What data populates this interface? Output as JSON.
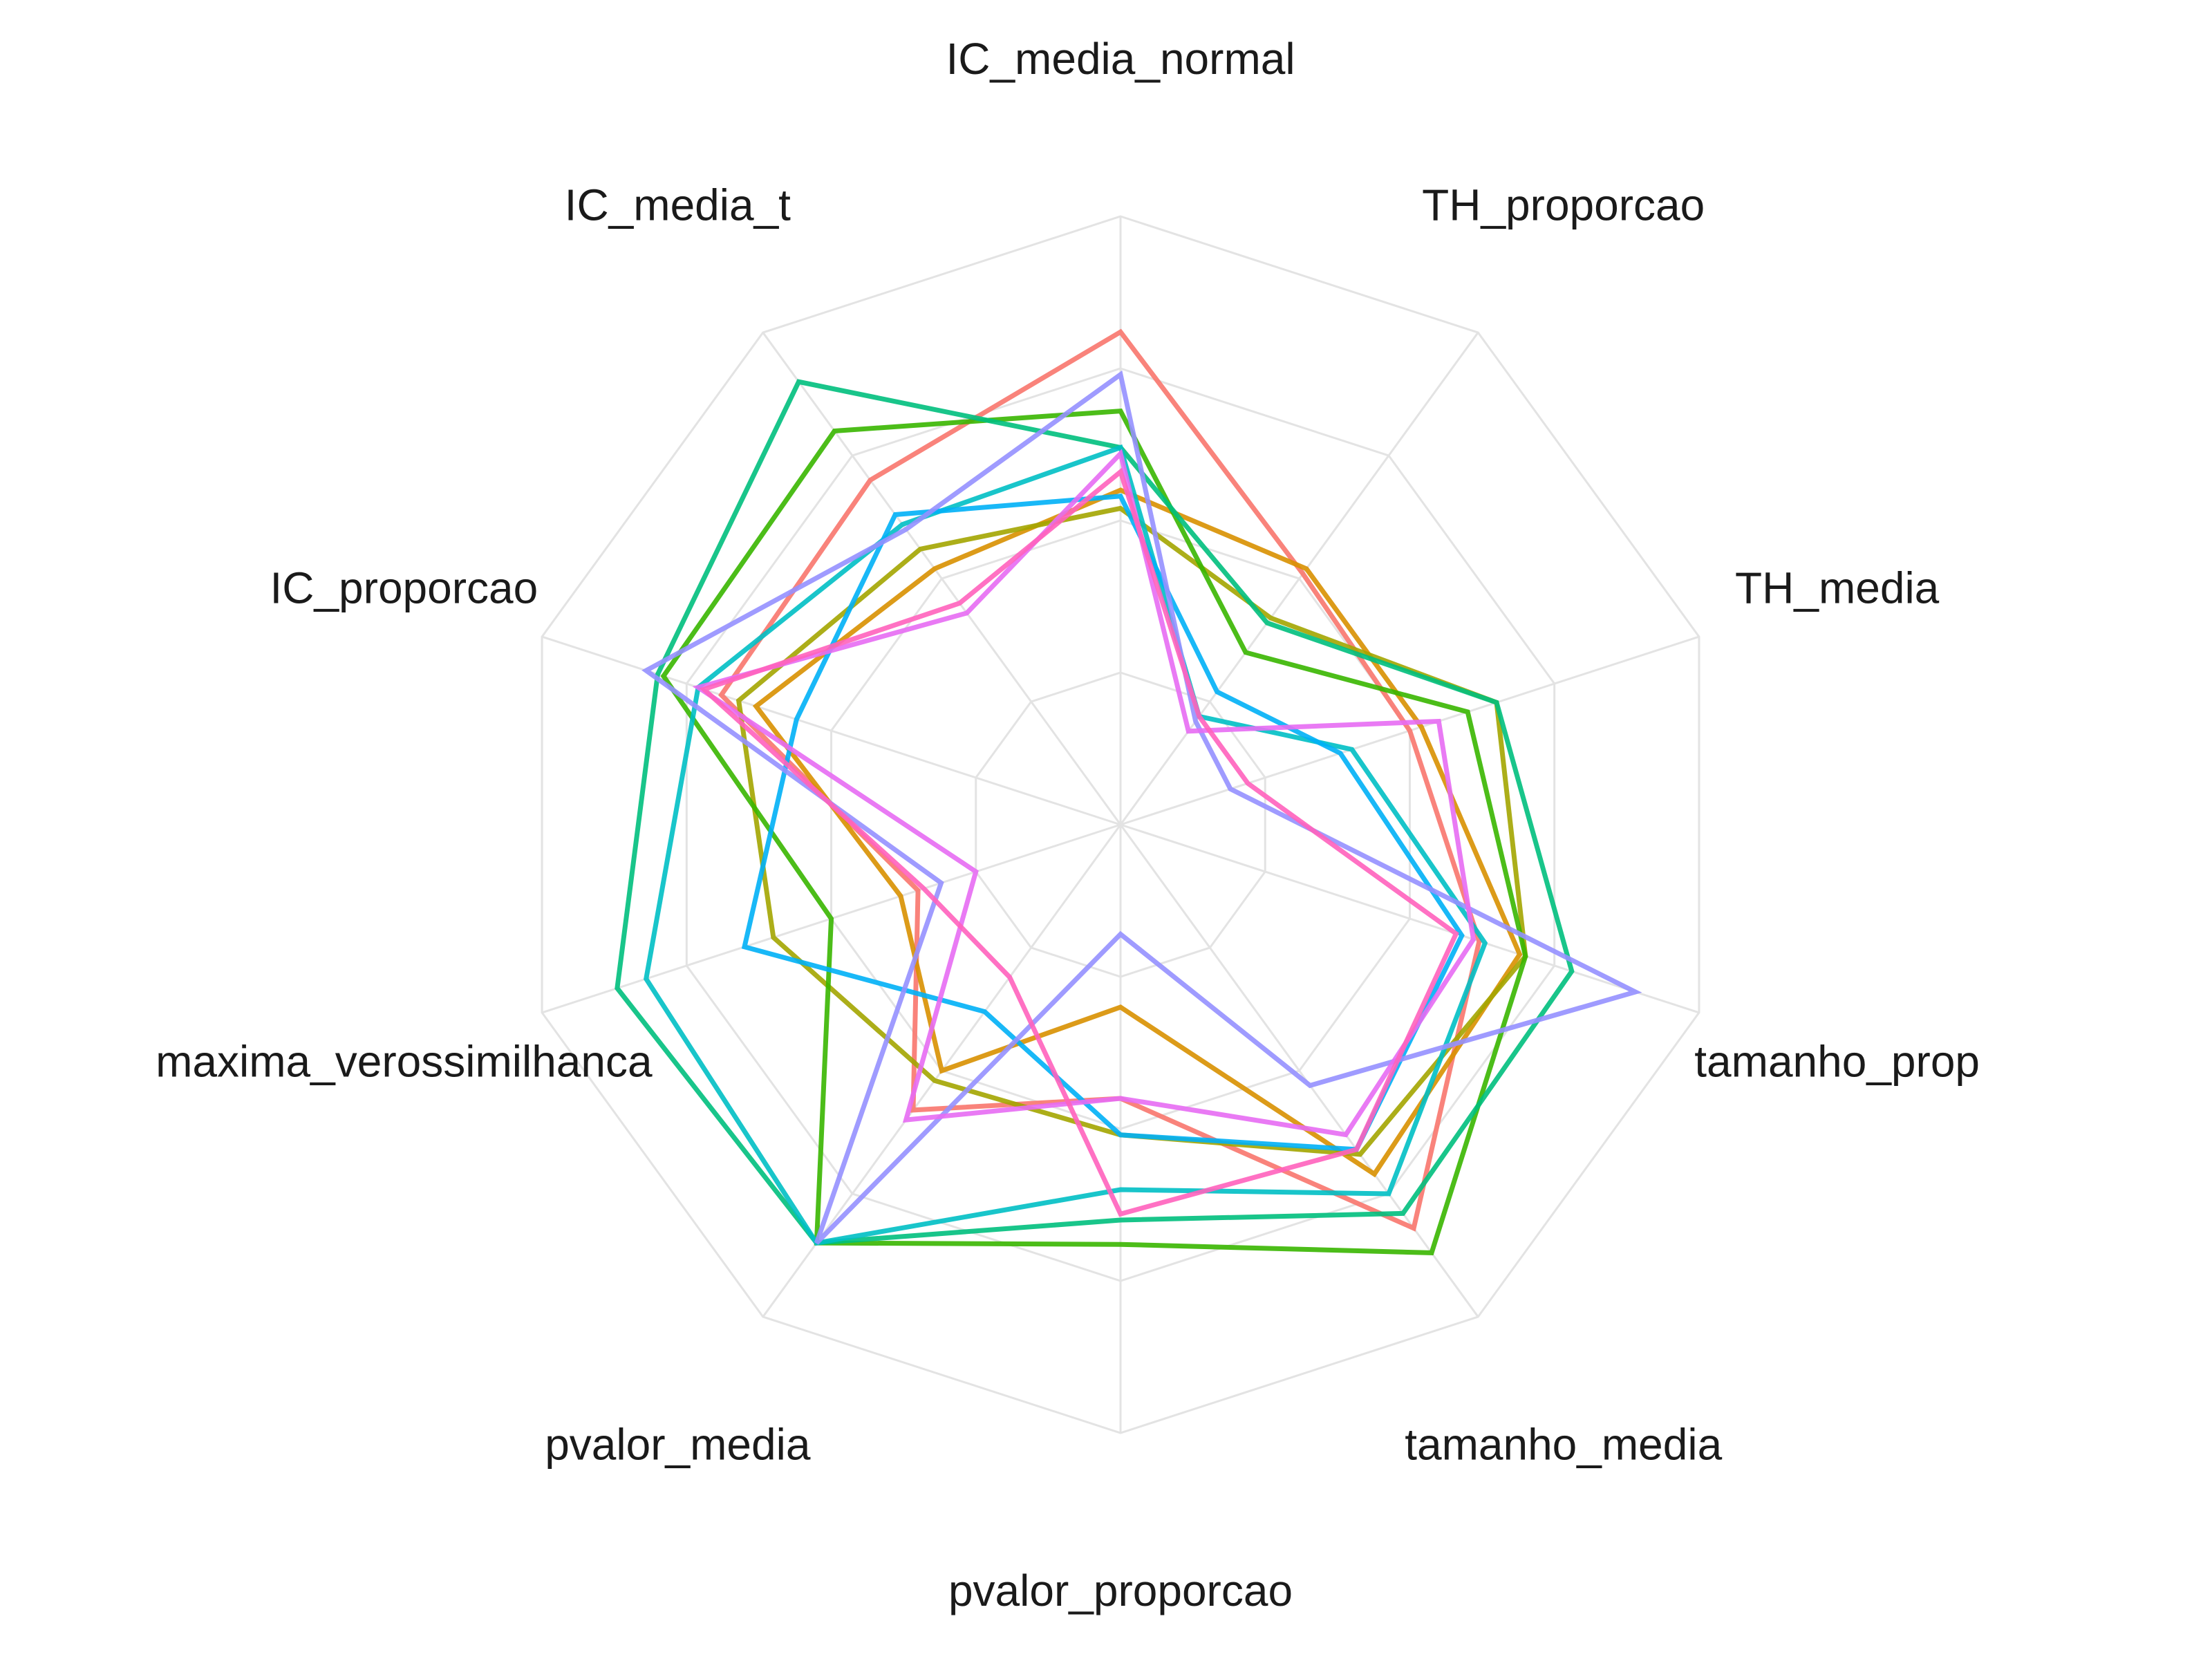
{
  "chart_data": {
    "type": "radar",
    "title": "",
    "grid": true,
    "legend": "none",
    "range": [
      0,
      1
    ],
    "axes": [
      "IC_media_normal",
      "TH_proporcao",
      "TH_media",
      "tamanho_prop",
      "tamanho_media",
      "pvalor_proporcao",
      "pvalor_media",
      "maxima_verossimilhanca",
      "IC_proporcao",
      "IC_media_t"
    ],
    "series": [
      {
        "color": "#F8766D",
        "values": [
          0.81,
          0.51,
          0.5,
          0.62,
          0.82,
          0.45,
          0.58,
          0.35,
          0.69,
          0.7
        ]
      },
      {
        "color": "#D89000",
        "values": [
          0.55,
          0.52,
          0.52,
          0.69,
          0.71,
          0.3,
          0.5,
          0.38,
          0.63,
          0.52
        ]
      },
      {
        "color": "#A3A500",
        "values": [
          0.52,
          0.42,
          0.65,
          0.7,
          0.67,
          0.51,
          0.52,
          0.6,
          0.66,
          0.56
        ]
      },
      {
        "color": "#39B600",
        "values": [
          0.68,
          0.35,
          0.6,
          0.7,
          0.87,
          0.69,
          0.85,
          0.5,
          0.79,
          0.8
        ]
      },
      {
        "color": "#00BF7D",
        "values": [
          0.62,
          0.41,
          0.65,
          0.78,
          0.79,
          0.65,
          0.85,
          0.87,
          0.8,
          0.9
        ]
      },
      {
        "color": "#00BFC4",
        "values": [
          0.62,
          0.22,
          0.4,
          0.63,
          0.75,
          0.6,
          0.85,
          0.82,
          0.73,
          0.61
        ]
      },
      {
        "color": "#00B0F6",
        "values": [
          0.54,
          0.27,
          0.38,
          0.59,
          0.66,
          0.51,
          0.38,
          0.65,
          0.56,
          0.63
        ]
      },
      {
        "color": "#9590FF",
        "values": [
          0.74,
          0.21,
          0.19,
          0.89,
          0.53,
          0.18,
          0.85,
          0.31,
          0.82,
          0.6
        ]
      },
      {
        "color": "#E76BF3",
        "values": [
          0.61,
          0.19,
          0.55,
          0.61,
          0.63,
          0.45,
          0.6,
          0.25,
          0.73,
          0.43
        ]
      },
      {
        "color": "#FF62BC",
        "values": [
          0.58,
          0.22,
          0.22,
          0.58,
          0.66,
          0.64,
          0.31,
          0.34,
          0.72,
          0.45
        ]
      }
    ]
  }
}
